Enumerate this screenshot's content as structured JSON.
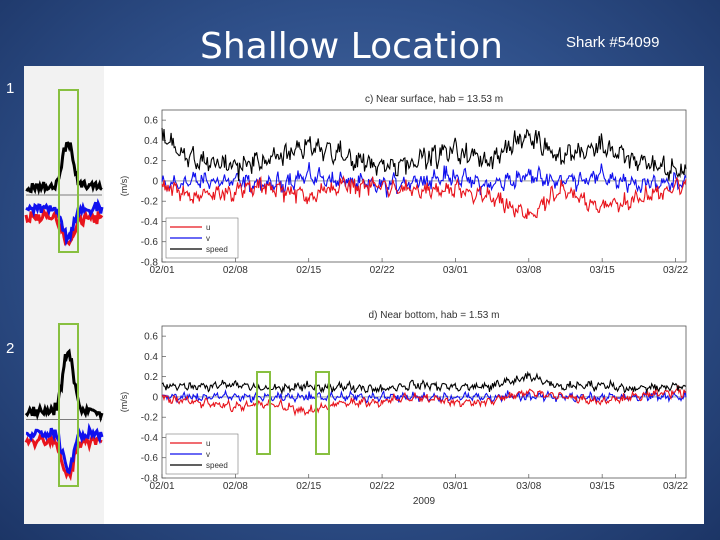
{
  "slide": {
    "title": "Shallow Location",
    "subtitle": "Shark #54099",
    "panel_numbers": [
      "1",
      "2"
    ]
  },
  "colors": {
    "u": "#e8141c",
    "v": "#1010ee",
    "speed": "#000000",
    "highlight_box": "#88c040",
    "background": "#2f508a"
  },
  "chart_data": [
    {
      "type": "line",
      "title": "c) Near surface, hab = 13.53 m",
      "xlabel": "",
      "ylabel": "(m/s)",
      "xlim": [
        "02/01",
        "03/23"
      ],
      "ylim": [
        -0.8,
        0.7
      ],
      "x_ticks": [
        "02/01",
        "02/08",
        "02/15",
        "02/22",
        "03/01",
        "03/08",
        "03/15",
        "03/22"
      ],
      "y_ticks": [
        "0.6",
        "0.4",
        "0.2",
        "0",
        "-0.2",
        "-0.4",
        "-0.6",
        "-0.8"
      ],
      "grid": false,
      "legend": {
        "placement": "bottom-left",
        "entries": [
          "u",
          "v",
          "speed"
        ]
      },
      "series": [
        {
          "name": "u",
          "x": [
            "02/01",
            "02/04",
            "02/08",
            "02/11",
            "02/15",
            "02/18",
            "02/22",
            "02/25",
            "03/01",
            "03/04",
            "03/08",
            "03/11",
            "03/15",
            "03/18",
            "03/22"
          ],
          "values": [
            -0.05,
            -0.15,
            -0.1,
            -0.05,
            -0.15,
            -0.05,
            -0.05,
            -0.1,
            -0.1,
            -0.15,
            -0.35,
            -0.1,
            -0.25,
            -0.2,
            -0.05
          ]
        },
        {
          "name": "v",
          "x": [
            "02/01",
            "02/04",
            "02/08",
            "02/11",
            "02/15",
            "02/18",
            "02/22",
            "02/25",
            "03/01",
            "03/04",
            "03/08",
            "03/11",
            "03/15",
            "03/18",
            "03/22"
          ],
          "values": [
            -0.05,
            0.0,
            0.0,
            -0.05,
            0.05,
            0.0,
            -0.05,
            0.0,
            0.05,
            -0.05,
            0.05,
            0.0,
            0.05,
            -0.05,
            0.0
          ]
        },
        {
          "name": "speed",
          "x": [
            "02/01",
            "02/04",
            "02/08",
            "02/11",
            "02/15",
            "02/18",
            "02/22",
            "02/25",
            "03/01",
            "03/04",
            "03/08",
            "03/11",
            "03/15",
            "03/18",
            "03/22"
          ],
          "values": [
            0.45,
            0.2,
            0.15,
            0.2,
            0.35,
            0.25,
            0.15,
            0.2,
            0.3,
            0.2,
            0.45,
            0.25,
            0.35,
            0.2,
            0.1
          ]
        }
      ]
    },
    {
      "type": "line",
      "title": "d) Near bottom, hab = 1.53 m",
      "xlabel": "2009",
      "ylabel": "(m/s)",
      "xlim": [
        "02/01",
        "03/23"
      ],
      "ylim": [
        -0.8,
        0.7
      ],
      "x_ticks": [
        "02/01",
        "02/08",
        "02/15",
        "02/22",
        "03/01",
        "03/08",
        "03/15",
        "03/22"
      ],
      "y_ticks": [
        "0.6",
        "0.4",
        "0.2",
        "0",
        "-0.2",
        "-0.4",
        "-0.6",
        "-0.8"
      ],
      "grid": false,
      "legend": {
        "placement": "bottom-left",
        "entries": [
          "u",
          "v",
          "speed"
        ]
      },
      "series": [
        {
          "name": "u",
          "x": [
            "02/01",
            "02/04",
            "02/08",
            "02/11",
            "02/15",
            "02/18",
            "02/22",
            "02/25",
            "03/01",
            "03/04",
            "03/08",
            "03/11",
            "03/15",
            "03/18",
            "03/22"
          ],
          "values": [
            0.0,
            -0.05,
            -0.1,
            -0.05,
            -0.15,
            -0.05,
            -0.05,
            0.0,
            -0.05,
            -0.05,
            0.05,
            0.0,
            -0.05,
            0.0,
            0.05
          ]
        },
        {
          "name": "v",
          "x": [
            "02/01",
            "02/04",
            "02/08",
            "02/11",
            "02/15",
            "02/18",
            "02/22",
            "02/25",
            "03/01",
            "03/04",
            "03/08",
            "03/11",
            "03/15",
            "03/18",
            "03/22"
          ],
          "values": [
            0.0,
            0.0,
            0.0,
            0.0,
            0.0,
            0.0,
            0.0,
            0.0,
            0.0,
            0.0,
            0.0,
            0.0,
            0.0,
            0.0,
            0.0
          ]
        },
        {
          "name": "speed",
          "x": [
            "02/01",
            "02/04",
            "02/08",
            "02/11",
            "02/15",
            "02/18",
            "02/22",
            "02/25",
            "03/01",
            "03/04",
            "03/08",
            "03/11",
            "03/15",
            "03/18",
            "03/22"
          ],
          "values": [
            0.12,
            0.1,
            0.12,
            0.08,
            0.1,
            0.1,
            0.08,
            0.12,
            0.1,
            0.1,
            0.2,
            0.1,
            0.12,
            0.08,
            0.1
          ]
        }
      ]
    }
  ]
}
